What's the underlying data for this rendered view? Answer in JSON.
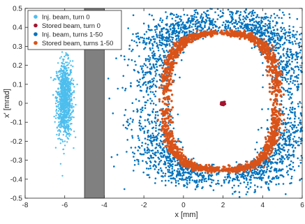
{
  "chart_data": {
    "type": "scatter",
    "xlabel": "x [mm]",
    "ylabel": "x' [mrad]",
    "xlim": [
      -8,
      6
    ],
    "ylim": [
      -0.5,
      0.5
    ],
    "xticks": [
      -8,
      -6,
      -4,
      -2,
      0,
      2,
      4,
      6
    ],
    "xtick_labels": [
      "-8",
      "-6",
      "-4",
      "-2",
      "0",
      "2",
      "4",
      "6"
    ],
    "yticks": [
      -0.5,
      -0.4,
      -0.3,
      -0.2,
      -0.1,
      0,
      0.1,
      0.2,
      0.3,
      0.4,
      0.5
    ],
    "ytick_labels": [
      "-0.5",
      "-0.4",
      "-0.3",
      "-0.2",
      "-0.1",
      "0",
      "0.1",
      "0.2",
      "0.3",
      "0.4",
      "0.5"
    ],
    "grid": false,
    "legend_position": "top-left",
    "septum": {
      "x_range": [
        -5,
        -4
      ],
      "color": "#808080"
    },
    "series": [
      {
        "name": "Inj. beam, turn 0",
        "color": "#4DBEEE",
        "shape": "gaussian-cloud",
        "center": [
          -6.0,
          0.02
        ],
        "spread": [
          0.2,
          0.1
        ]
      },
      {
        "name": "Stored  beam, turn 0",
        "color": "#A2142F",
        "shape": "gaussian-cloud",
        "center": [
          2.0,
          0.0
        ],
        "spread": [
          0.05,
          0.004
        ]
      },
      {
        "name": "Inj. beam, turns 1-50",
        "color": "#0072BD",
        "shape": "ring",
        "center": [
          1.9,
          0.02
        ],
        "radius": [
          3.0,
          0.38
        ],
        "band": [
          0.2,
          0.2
        ]
      },
      {
        "name": "Stored beam, turns 1-50",
        "color": "#D95319",
        "shape": "ring",
        "center": [
          1.9,
          0.01
        ],
        "radius": [
          2.8,
          0.36
        ],
        "band": [
          0.05,
          0.05
        ]
      }
    ]
  }
}
